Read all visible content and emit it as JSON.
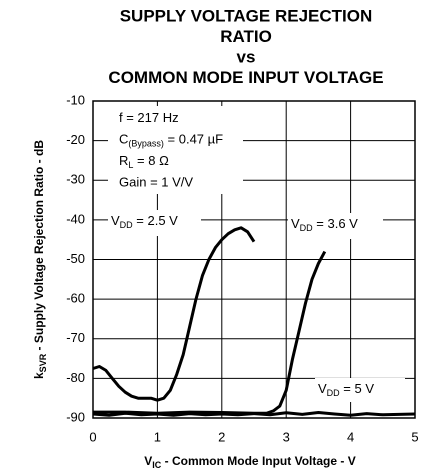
{
  "chart_data": {
    "type": "line",
    "title": [
      "SUPPLY VOLTAGE REJECTION",
      "RATIO",
      "vs",
      "COMMON MODE INPUT VOLTAGE"
    ],
    "x_label": {
      "base": "V",
      "sub": "IC",
      "rest": " - Common Mode Input Voltage - V"
    },
    "y_label": {
      "base": "k",
      "sub": "SVR",
      "rest": " - Supply Voltage Rejection Ratio - dB"
    },
    "annotations": [
      {
        "base": "f = 217 Hz"
      },
      {
        "base": "C",
        "sub": "(Bypass)",
        "rest": " = 0.47 µF"
      },
      {
        "base": "R",
        "sub": "L",
        "rest": " = 8 Ω"
      },
      {
        "base": "Gain = 1 V/V"
      }
    ],
    "xlim": [
      0,
      5
    ],
    "xticks": [
      0,
      1,
      2,
      3,
      4,
      5
    ],
    "ylim": [
      -90,
      -10
    ],
    "yticks": [
      -10,
      -20,
      -30,
      -40,
      -50,
      -60,
      -70,
      -80,
      -90
    ],
    "grid": true,
    "series": [
      {
        "label": {
          "base": "V",
          "sub": "DD",
          "rest": " = 2.5 V"
        },
        "color": "#000000",
        "x": [
          0,
          0.1,
          0.2,
          0.3,
          0.4,
          0.5,
          0.6,
          0.7,
          0.8,
          0.9,
          1.0,
          1.1,
          1.2,
          1.3,
          1.4,
          1.5,
          1.6,
          1.7,
          1.8,
          1.9,
          2.0,
          2.1,
          2.2,
          2.3,
          2.4,
          2.5
        ],
        "values": [
          -77.5,
          -77,
          -78,
          -80,
          -82,
          -83.5,
          -84.5,
          -85,
          -85,
          -85,
          -85.5,
          -85,
          -83,
          -79,
          -74,
          -67,
          -60,
          -54,
          -50,
          -47,
          -45,
          -43.5,
          -42.5,
          -42,
          -43,
          -45.5
        ]
      },
      {
        "label": {
          "base": "V",
          "sub": "DD",
          "rest": " = 3.6 V"
        },
        "color": "#000000",
        "x": [
          0,
          0.5,
          1.0,
          1.5,
          2.0,
          2.5,
          2.7,
          2.8,
          2.9,
          3.0,
          3.1,
          3.2,
          3.3,
          3.4,
          3.5,
          3.6
        ],
        "values": [
          -88.5,
          -88.5,
          -88.8,
          -88.5,
          -88.6,
          -88.8,
          -88.8,
          -88.2,
          -87,
          -83,
          -75,
          -68,
          -61,
          -55,
          -51,
          -48
        ]
      },
      {
        "label": {
          "base": "V",
          "sub": "DD",
          "rest": " = 5 V"
        },
        "color": "#000000",
        "x": [
          0,
          0.25,
          0.5,
          0.75,
          1.0,
          1.25,
          1.5,
          1.75,
          2.0,
          2.25,
          2.5,
          2.75,
          3.0,
          3.25,
          3.5,
          3.75,
          4.0,
          4.25,
          4.5,
          4.75,
          5.0
        ],
        "values": [
          -89,
          -89.3,
          -88.8,
          -89.2,
          -89,
          -89.3,
          -88.9,
          -89.2,
          -89,
          -89.2,
          -88.9,
          -89.2,
          -88.7,
          -89.1,
          -88.6,
          -89,
          -89.3,
          -88.9,
          -89.2,
          -89.1,
          -89
        ]
      }
    ]
  }
}
